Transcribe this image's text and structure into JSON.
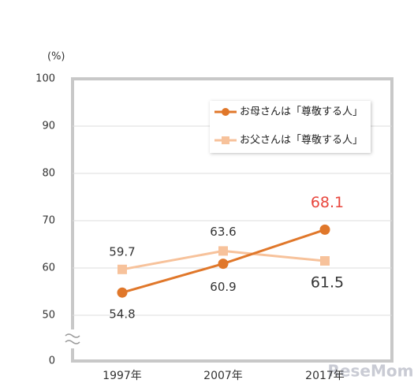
{
  "chart_data": {
    "type": "line",
    "y_unit": "(%)",
    "categories": [
      "1997年",
      "2007年",
      "2017年"
    ],
    "series": [
      {
        "name": "お母さんは「尊敬する人」",
        "color": "#e0772a",
        "marker": "circle",
        "values": [
          54.8,
          60.9,
          68.1
        ]
      },
      {
        "name": "お父さんは「尊敬する人」",
        "color": "#f7c29b",
        "marker": "square",
        "values": [
          59.7,
          63.6,
          61.5
        ]
      }
    ],
    "ylim": [
      0,
      100
    ],
    "yticks": [
      0,
      50,
      60,
      70,
      80,
      90,
      100
    ],
    "axis_break": true,
    "grid": true,
    "legend": "upper right",
    "watermark": "ReseMom"
  }
}
